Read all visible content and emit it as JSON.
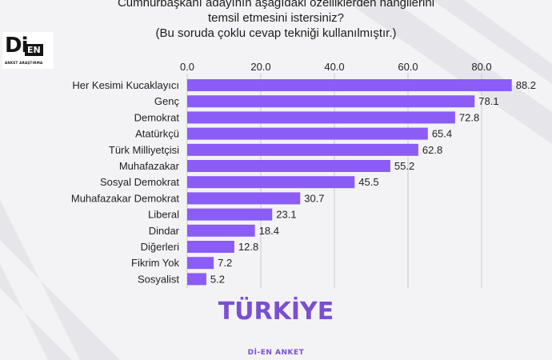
{
  "header": {
    "title_lines": [
      "Cumhurbaşkanı adayının aşağıdaki özelliklerden hangilerini",
      "temsil etmesini istersiniz?",
      "(Bu soruda çoklu cevap tekniği kullanılmıştır.)"
    ]
  },
  "logo": {
    "main": "Di",
    "badge": "EN",
    "subtitle": "ANKET ARAŞTIRMA"
  },
  "country_label": "TÜRKİYE",
  "footer_label": "Dİ-EN ANKET",
  "colors": {
    "bar": "#8b5cf6",
    "accent": "#7a4fd1",
    "grid": "#c9c9ce"
  },
  "chart_data": {
    "type": "bar",
    "orientation": "horizontal",
    "categories": [
      "Her Kesimi Kucaklayıcı",
      "Genç",
      "Demokrat",
      "Atatürkçü",
      "Türk Milliyetçisi",
      "Muhafazakar",
      "Sosyal Demokrat",
      "Muhafazakar Demokrat",
      "Liberal",
      "Dindar",
      "Diğerleri",
      "Fikrim Yok",
      "Sosyalist"
    ],
    "values": [
      88.2,
      78.1,
      72.8,
      65.4,
      62.8,
      55.2,
      45.5,
      30.7,
      23.1,
      18.4,
      12.8,
      7.2,
      5.2
    ],
    "value_labels": [
      "88.2",
      "78.1",
      "72.8",
      "65.4",
      "62.8",
      "55.2",
      "45.5",
      "30.7",
      "23.1",
      "18.4",
      "12.8",
      "7.2",
      "5.2"
    ],
    "xticks": [
      0,
      20,
      40,
      60,
      80
    ],
    "xtick_labels": [
      "0.0",
      "20.0",
      "40.0",
      "60.0",
      "80.0"
    ],
    "xlim": [
      0,
      90
    ],
    "axis_position": "top",
    "grid": true
  }
}
